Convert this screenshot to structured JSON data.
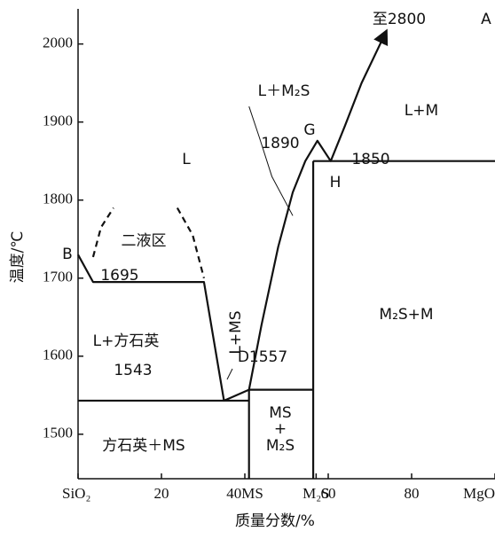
{
  "chart_data": {
    "type": "phase-diagram",
    "ylabel": "温度/℃",
    "xlabel": "质量分数/%",
    "xlim": [
      0,
      100
    ],
    "ylim": [
      1443,
      2045
    ],
    "xticks": [
      {
        "value": 0,
        "label": "SiO₂"
      },
      20,
      {
        "value": 40,
        "label": "40MS"
      },
      {
        "value": 57.1,
        "label": "M₂S"
      },
      60,
      80,
      {
        "value": 100,
        "label": "MgO"
      }
    ],
    "yticks": [
      1500,
      1600,
      1700,
      1800,
      1900,
      2000
    ],
    "lines": [
      {
        "x": [
          0,
          3.6,
          30.2,
          35,
          41,
          44,
          48,
          51.5,
          54.5,
          57.4,
          60.6,
          64,
          68,
          73.8
        ],
        "values": [
          1730,
          1695,
          1695,
          1543,
          1557,
          1640,
          1740,
          1810,
          1850,
          1876,
          1850,
          1895,
          1950,
          2015
        ],
        "style": "solid"
      },
      {
        "x": [
          0,
          41
        ],
        "values": [
          1543,
          1543
        ],
        "style": "solid"
      },
      {
        "x": [
          41,
          56.4
        ],
        "values": [
          1557,
          1557
        ],
        "style": "solid"
      },
      {
        "x": [
          41,
          41
        ],
        "values": [
          1443,
          1557
        ],
        "style": "solid"
      },
      {
        "x": [
          56.4,
          56.4
        ],
        "values": [
          1443,
          1850
        ],
        "style": "solid"
      },
      {
        "x": [
          56.4,
          100
        ],
        "values": [
          1850,
          1850
        ],
        "style": "solid"
      },
      {
        "x": [
          3.6,
          5.5,
          8.5
        ],
        "values": [
          1727,
          1765,
          1790
        ],
        "style": "dashed"
      },
      {
        "x": [
          23.8,
          27.5,
          30.2
        ],
        "values": [
          1790,
          1755,
          1700
        ],
        "style": "dashed"
      },
      {
        "x": [
          41,
          43.5,
          46.5,
          51.5
        ],
        "values": [
          1920,
          1880,
          1830,
          1780
        ],
        "style": "thin"
      }
    ],
    "arrow": true,
    "annotations": [
      "至2800",
      "A",
      "B",
      "1695",
      "二液区",
      "L",
      "L＋M₂S",
      "1890",
      "G",
      "L+M",
      "1850",
      "H",
      "L+方石英",
      "L+MS",
      "1543",
      "D1557",
      "M₂S+M",
      "MS",
      "+",
      "M₂S",
      "方石英＋MS"
    ]
  }
}
